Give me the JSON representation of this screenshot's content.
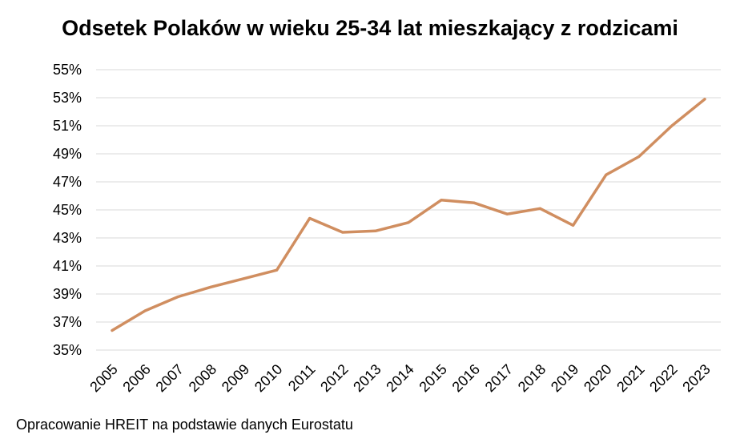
{
  "chart_data": {
    "type": "line",
    "title": "Odsetek Polaków w wieku 25-34 lat mieszkający z rodzicami",
    "xlabel": "",
    "ylabel": "",
    "x": [
      "2005",
      "2006",
      "2007",
      "2008",
      "2009",
      "2010",
      "2011",
      "2012",
      "2013",
      "2014",
      "2015",
      "2016",
      "2017",
      "2018",
      "2019",
      "2020",
      "2021",
      "2022",
      "2023"
    ],
    "series": [
      {
        "values": [
          36.4,
          37.8,
          38.8,
          39.5,
          40.1,
          40.7,
          44.4,
          43.4,
          43.5,
          44.1,
          45.7,
          45.5,
          44.7,
          45.1,
          43.9,
          47.5,
          48.8,
          51.0,
          52.9
        ],
        "color": "#d08e60"
      }
    ],
    "ylim": [
      35,
      55
    ],
    "yticks": [
      "35%",
      "37%",
      "39%",
      "41%",
      "43%",
      "45%",
      "47%",
      "49%",
      "51%",
      "53%",
      "55%"
    ],
    "grid": true,
    "legend": "none"
  },
  "footer": {
    "source": "Opracowanie HREIT na podstawie danych Eurostatu"
  }
}
